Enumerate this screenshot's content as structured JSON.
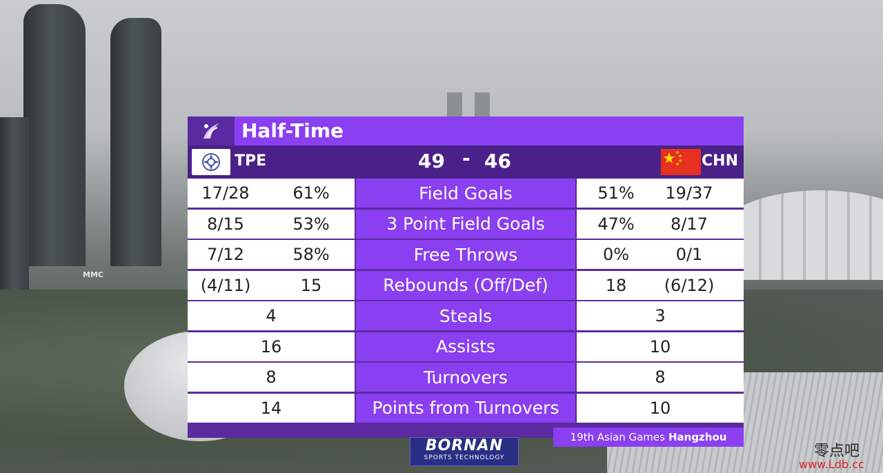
{
  "header": {
    "title": "Half-Time"
  },
  "home": {
    "code": "TPE",
    "score": "49"
  },
  "away": {
    "code": "CHN",
    "score": "46"
  },
  "score_separator": "-",
  "stats": [
    {
      "label": "Field Goals",
      "home_a": "17/28",
      "home_b": "61%",
      "away_a": "51%",
      "away_b": "19/37"
    },
    {
      "label": "3 Point Field Goals",
      "home_a": "8/15",
      "home_b": "53%",
      "away_a": "47%",
      "away_b": "8/17"
    },
    {
      "label": "Free Throws",
      "home_a": "7/12",
      "home_b": "58%",
      "away_a": "0%",
      "away_b": "0/1"
    },
    {
      "label": "Rebounds (Off/Def)",
      "home_a": "(4/11)",
      "home_b": "15",
      "away_a": "18",
      "away_b": "(6/12)"
    },
    {
      "label": "Steals",
      "home": "4",
      "away": "3"
    },
    {
      "label": "Assists",
      "home": "16",
      "away": "10"
    },
    {
      "label": "Turnovers",
      "home": "8",
      "away": "8"
    },
    {
      "label": "Points from Turnovers",
      "home": "14",
      "away": "10"
    }
  ],
  "footer": {
    "event": "19th Asian Games",
    "city": "Hangzhou"
  },
  "sponsor": {
    "name": "BORNAN",
    "tagline": "SPORTS TECHNOLOGY"
  },
  "background_sign": "MMC",
  "watermark": {
    "chars": "零点吧",
    "url": "www.Ldb.cc"
  },
  "colors": {
    "purple_light": "#8a3ff0",
    "purple_dark": "#4a2188",
    "chn_red": "#e63020"
  }
}
